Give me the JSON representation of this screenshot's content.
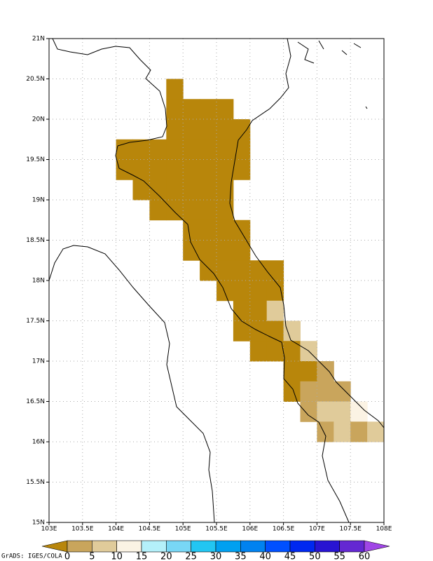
{
  "chart_data": {
    "type": "gridmap",
    "xlim": [
      103,
      108
    ],
    "ylim": [
      15,
      21
    ],
    "grid": true,
    "cell_size": 0.25,
    "xticks": [
      {
        "value": 103,
        "label": "103E"
      },
      {
        "value": 103.5,
        "label": "103.5E"
      },
      {
        "value": 104,
        "label": "104E"
      },
      {
        "value": 104.5,
        "label": "104.5E"
      },
      {
        "value": 105,
        "label": "105E"
      },
      {
        "value": 105.5,
        "label": "105.5E"
      },
      {
        "value": 106,
        "label": "106E"
      },
      {
        "value": 106.5,
        "label": "106.5E"
      },
      {
        "value": 107,
        "label": "107E"
      },
      {
        "value": 107.5,
        "label": "107.5E"
      },
      {
        "value": 108,
        "label": "108E"
      }
    ],
    "yticks": [
      {
        "value": 15,
        "label": "15N"
      },
      {
        "value": 15.5,
        "label": "15.5N"
      },
      {
        "value": 16,
        "label": "16N"
      },
      {
        "value": 16.5,
        "label": "16.5N"
      },
      {
        "value": 17,
        "label": "17N"
      },
      {
        "value": 17.5,
        "label": "17.5N"
      },
      {
        "value": 18,
        "label": "18N"
      },
      {
        "value": 18.5,
        "label": "18.5N"
      },
      {
        "value": 19,
        "label": "19N"
      },
      {
        "value": 19.5,
        "label": "19.5N"
      },
      {
        "value": 20,
        "label": "20N"
      },
      {
        "value": 20.5,
        "label": "20.5N"
      },
      {
        "value": 21,
        "label": "21N"
      }
    ],
    "rows": [
      {
        "lat": 20.25,
        "lon": [
          104.75
        ],
        "color": [
          "#b8860b"
        ]
      },
      {
        "lat": 20.0,
        "lon": [
          104.75,
          105.0,
          105.25,
          105.5
        ],
        "color": [
          "#b8860b",
          "#b8860b",
          "#b8860b",
          "#b8860b"
        ]
      },
      {
        "lat": 19.75,
        "lon": [
          104.75,
          105.0,
          105.25,
          105.5,
          105.75
        ],
        "color": [
          "#b8860b",
          "#b8860b",
          "#b8860b",
          "#b8860b",
          "#b8860b"
        ]
      },
      {
        "lat": 19.5,
        "lon": [
          104.0,
          104.25,
          104.5,
          104.75,
          105.0,
          105.25,
          105.5,
          105.75
        ],
        "color": [
          "#b8860b",
          "#b8860b",
          "#b8860b",
          "#b8860b",
          "#b8860b",
          "#b8860b",
          "#b8860b",
          "#b8860b"
        ]
      },
      {
        "lat": 19.25,
        "lon": [
          104.0,
          104.25,
          104.5,
          104.75,
          105.0,
          105.25,
          105.5,
          105.75
        ],
        "color": [
          "#b8860b",
          "#b8860b",
          "#b8860b",
          "#b8860b",
          "#b8860b",
          "#b8860b",
          "#b8860b",
          "#b8860b"
        ]
      },
      {
        "lat": 19.0,
        "lon": [
          104.25,
          104.5,
          104.75,
          105.0,
          105.25,
          105.5
        ],
        "color": [
          "#b8860b",
          "#b8860b",
          "#b8860b",
          "#b8860b",
          "#b8860b",
          "#b8860b"
        ]
      },
      {
        "lat": 18.75,
        "lon": [
          104.5,
          104.75,
          105.0,
          105.25,
          105.5
        ],
        "color": [
          "#b8860b",
          "#b8860b",
          "#b8860b",
          "#b8860b",
          "#b8860b"
        ]
      },
      {
        "lat": 18.5,
        "lon": [
          105.0,
          105.25,
          105.5,
          105.75
        ],
        "color": [
          "#b8860b",
          "#b8860b",
          "#b8860b",
          "#b8860b"
        ]
      },
      {
        "lat": 18.25,
        "lon": [
          105.0,
          105.25,
          105.5,
          105.75
        ],
        "color": [
          "#b8860b",
          "#b8860b",
          "#b8860b",
          "#b8860b"
        ]
      },
      {
        "lat": 18.0,
        "lon": [
          105.25,
          105.5,
          105.75,
          106.0,
          106.25
        ],
        "color": [
          "#b8860b",
          "#b8860b",
          "#b8860b",
          "#b8860b",
          "#b8860b"
        ]
      },
      {
        "lat": 17.75,
        "lon": [
          105.5,
          105.75,
          106.0,
          106.25
        ],
        "color": [
          "#b8860b",
          "#b8860b",
          "#b8860b",
          "#b8860b"
        ]
      },
      {
        "lat": 17.5,
        "lon": [
          105.75,
          106.0,
          106.25
        ],
        "color": [
          "#b8860b",
          "#b8860b",
          "#e0cb9a"
        ]
      },
      {
        "lat": 17.25,
        "lon": [
          105.75,
          106.0,
          106.25,
          106.5
        ],
        "color": [
          "#b8860b",
          "#b8860b",
          "#b8860b",
          "#e0cb9a"
        ]
      },
      {
        "lat": 17.0,
        "lon": [
          106.0,
          106.25,
          106.5,
          106.75
        ],
        "color": [
          "#b8860b",
          "#b8860b",
          "#b8860b",
          "#e0cb9a"
        ]
      },
      {
        "lat": 16.75,
        "lon": [
          106.5,
          106.75,
          107.0
        ],
        "color": [
          "#b8860b",
          "#b8860b",
          "#c9a55c"
        ]
      },
      {
        "lat": 16.5,
        "lon": [
          106.5,
          106.75,
          107.0,
          107.25
        ],
        "color": [
          "#b8860b",
          "#c9a55c",
          "#c9a55c",
          "#c9a55c"
        ]
      },
      {
        "lat": 16.25,
        "lon": [
          106.75,
          107.0,
          107.25,
          107.5
        ],
        "color": [
          "#c9a55c",
          "#e0cb9a",
          "#e0cb9a",
          "#fbf3e4"
        ]
      },
      {
        "lat": 16.0,
        "lon": [
          107.0,
          107.25,
          107.5,
          107.75
        ],
        "color": [
          "#c9a55c",
          "#e0cb9a",
          "#c9a55c",
          "#e0cb9a"
        ]
      }
    ],
    "colorbar": {
      "levels": [
        0,
        5,
        10,
        15,
        20,
        25,
        30,
        35,
        40,
        45,
        50,
        55,
        60
      ],
      "colors": [
        "#b8860b",
        "#c9a55c",
        "#e0cb9a",
        "#fbf3e4",
        "#b4f0fa",
        "#78d7f5",
        "#22c6f2",
        "#00a0f0",
        "#0082f0",
        "#0050ff",
        "#0028f0",
        "#2814d2",
        "#6428d2",
        "#a046e6"
      ]
    },
    "credit": "GrADS: IGES/COLA"
  }
}
